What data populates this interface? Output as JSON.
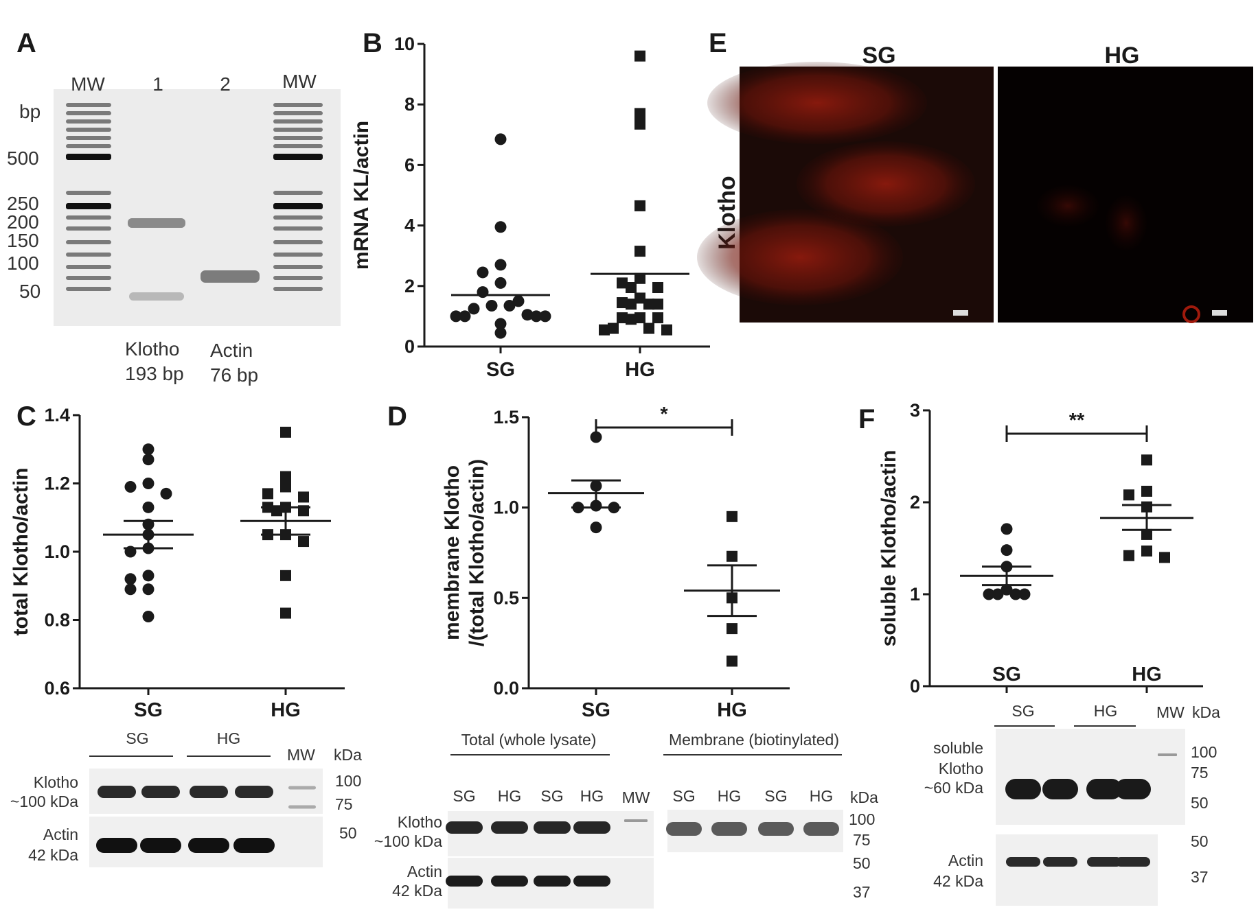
{
  "panel_letters": [
    "A",
    "B",
    "C",
    "D",
    "E",
    "F"
  ],
  "panel_a": {
    "lane_labels": [
      "MW",
      "1",
      "2",
      "MW"
    ],
    "unit": "bp",
    "ladder_labels": [
      "500",
      "250",
      "200",
      "150",
      "100",
      "50"
    ],
    "captions": [
      {
        "name": "Klotho",
        "size": "193 bp"
      },
      {
        "name": "Actin",
        "size": "76 bp"
      }
    ]
  },
  "panel_e": {
    "columns": [
      "SG",
      "HG"
    ],
    "row_label": "Klotho"
  },
  "panel_c_blot": {
    "groups": [
      "SG",
      "HG"
    ],
    "mw": "MW",
    "unit": "kDa",
    "rows": [
      {
        "label": "Klotho",
        "size": "~100 kDa"
      },
      {
        "label": "Actin",
        "size": "42 kDa"
      }
    ],
    "markers": [
      "100",
      "75",
      "50"
    ]
  },
  "panel_d_blot": {
    "sections": [
      "Total (whole lysate)",
      "Membrane (biotinylated)"
    ],
    "lanes": [
      "SG",
      "HG",
      "SG",
      "HG"
    ],
    "mw": "MW",
    "unit": "kDa",
    "rows": [
      {
        "label": "Klotho",
        "size": "~100 kDa"
      },
      {
        "label": "Actin",
        "size": "42 kDa"
      }
    ],
    "markers": [
      "100",
      "75",
      "50",
      "37"
    ]
  },
  "panel_f_blot": {
    "groups": [
      "SG",
      "HG"
    ],
    "mw": "MW",
    "unit": "kDa",
    "rows": [
      {
        "label": "soluble Klotho",
        "size": "~60 kDa"
      },
      {
        "label": "Actin",
        "size": "42 kDa"
      }
    ],
    "markers": [
      "100",
      "75",
      "50",
      "50",
      "37"
    ]
  },
  "chart_data": [
    {
      "panel": "B",
      "type": "scatter",
      "ylabel": "mRNA KL/actin",
      "ylim": [
        0,
        10
      ],
      "yticks": [
        "0",
        "2",
        "4",
        "6",
        "8",
        "10"
      ],
      "categories": [
        "SG",
        "HG"
      ],
      "groups": [
        {
          "name": "SG",
          "marker": "circle",
          "mean": 1.7,
          "values": [
            6.85,
            3.95,
            2.7,
            2.45,
            2.1,
            1.8,
            1.5,
            1.35,
            1.35,
            1.25,
            1.05,
            1.0,
            1.0,
            1.0,
            1.0,
            0.75,
            0.45
          ]
        },
        {
          "name": "HG",
          "marker": "square",
          "mean": 2.4,
          "values": [
            9.6,
            7.7,
            7.35,
            4.65,
            3.15,
            2.25,
            2.1,
            1.95,
            1.95,
            1.6,
            1.4,
            1.4,
            1.45,
            1.4,
            0.95,
            0.95,
            0.95,
            0.9,
            0.6,
            0.55,
            0.6,
            0.55
          ]
        }
      ]
    },
    {
      "panel": "C",
      "type": "scatter",
      "ylabel": "total Klotho/actin",
      "ylim": [
        0.6,
        1.4
      ],
      "yticks": [
        "0.6",
        "0.8",
        "1.0",
        "1.2",
        "1.4"
      ],
      "categories": [
        "SG",
        "HG"
      ],
      "groups": [
        {
          "name": "SG",
          "marker": "circle",
          "mean": 1.05,
          "sem": [
            1.01,
            1.09
          ],
          "values": [
            1.3,
            1.27,
            1.2,
            1.19,
            1.17,
            1.13,
            1.08,
            1.05,
            1.01,
            1.0,
            0.93,
            0.92,
            0.89,
            0.89,
            0.81
          ]
        },
        {
          "name": "HG",
          "marker": "square",
          "mean": 1.09,
          "sem": [
            1.05,
            1.13
          ],
          "values": [
            1.35,
            1.22,
            1.19,
            1.17,
            1.16,
            1.13,
            1.13,
            1.12,
            1.12,
            1.05,
            1.05,
            1.03,
            0.93,
            0.82
          ]
        }
      ]
    },
    {
      "panel": "D",
      "type": "scatter",
      "ylabel": "membrane Klotho /(total Klotho/actin)",
      "ylim": [
        0,
        1.5
      ],
      "yticks": [
        "0.0",
        "0.5",
        "1.0",
        "1.5"
      ],
      "categories": [
        "SG",
        "HG"
      ],
      "significance": "*",
      "groups": [
        {
          "name": "SG",
          "marker": "circle",
          "mean": 1.08,
          "sem": [
            1.0,
            1.15
          ],
          "values": [
            1.39,
            1.12,
            1.01,
            1.0,
            1.0,
            0.89
          ]
        },
        {
          "name": "HG",
          "marker": "square",
          "mean": 0.54,
          "sem": [
            0.4,
            0.68
          ],
          "values": [
            0.95,
            0.73,
            0.5,
            0.33,
            0.15
          ]
        }
      ]
    },
    {
      "panel": "F",
      "type": "scatter",
      "ylabel": "soluble Klotho/actin",
      "ylim": [
        0,
        3
      ],
      "yticks": [
        "0",
        "1",
        "2",
        "3"
      ],
      "categories": [
        "SG",
        "HG"
      ],
      "significance": "**",
      "groups": [
        {
          "name": "SG",
          "marker": "circle",
          "mean": 1.2,
          "sem": [
            1.1,
            1.3
          ],
          "values": [
            1.71,
            1.48,
            1.3,
            1.05,
            1.0,
            1.0,
            1.0,
            1.0
          ]
        },
        {
          "name": "HG",
          "marker": "square",
          "mean": 1.83,
          "sem": [
            1.7,
            1.97
          ],
          "values": [
            2.46,
            2.12,
            2.08,
            1.95,
            1.65,
            1.47,
            1.42,
            1.4
          ]
        }
      ]
    }
  ]
}
